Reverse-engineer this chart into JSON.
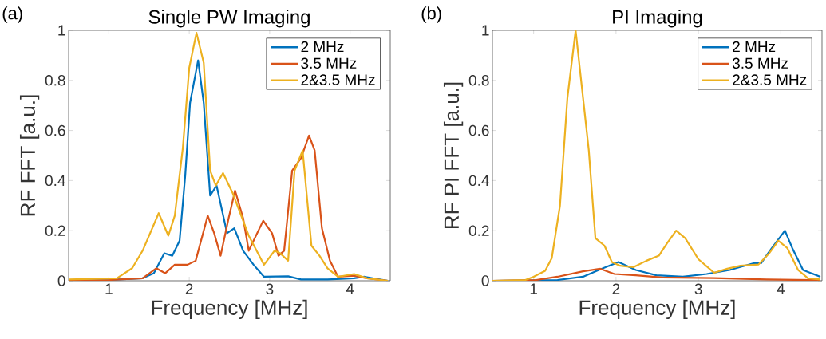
{
  "chart_data": [
    {
      "type": "line",
      "title": "Single PW Imaging",
      "xlabel": "Frequency [MHz]",
      "ylabel": "RF FFT [a.u.]",
      "annotations": [
        "(a)"
      ],
      "xlim": [
        0.5,
        4.5
      ],
      "ylim": [
        0,
        1
      ],
      "xticks": [
        1,
        2,
        3,
        4
      ],
      "yticks": [
        0,
        0.2,
        0.4,
        0.6,
        0.8,
        1
      ],
      "legend": "top right",
      "grid": false,
      "line_style": "solid",
      "series": [
        {
          "name": "2 MHz",
          "color": "#0072bd",
          "x": [
            0.5,
            1.0,
            1.42,
            1.56,
            1.69,
            1.79,
            1.88,
            1.95,
            2.01,
            2.11,
            2.18,
            2.26,
            2.34,
            2.47,
            2.56,
            2.67,
            2.8,
            2.93,
            3.23,
            3.39,
            3.72,
            4.05,
            4.18,
            4.47
          ],
          "values": [
            0,
            0.003,
            0.01,
            0.03,
            0.11,
            0.1,
            0.16,
            0.42,
            0.71,
            0.88,
            0.71,
            0.34,
            0.38,
            0.19,
            0.21,
            0.12,
            0.064,
            0.016,
            0.018,
            0.005,
            0.005,
            0.01,
            0.016,
            0
          ]
        },
        {
          "name": "3.5 MHz",
          "color": "#d95319",
          "x": [
            0.5,
            1.0,
            1.42,
            1.59,
            1.7,
            1.82,
            1.98,
            2.08,
            2.23,
            2.31,
            2.39,
            2.49,
            2.57,
            2.67,
            2.74,
            2.92,
            3.03,
            3.11,
            3.18,
            3.28,
            3.39,
            3.49,
            3.56,
            3.65,
            3.75,
            3.85,
            4.05,
            4.21,
            4.47
          ],
          "values": [
            0,
            0.003,
            0.01,
            0.05,
            0.03,
            0.064,
            0.064,
            0.08,
            0.26,
            0.19,
            0.1,
            0.25,
            0.36,
            0.25,
            0.12,
            0.24,
            0.19,
            0.1,
            0.12,
            0.44,
            0.49,
            0.58,
            0.52,
            0.21,
            0.08,
            0.016,
            0.02,
            0.01,
            0
          ]
        },
        {
          "name": "2&3.5 MHz",
          "color": "#edb120",
          "x": [
            0.5,
            1.1,
            1.29,
            1.42,
            1.62,
            1.74,
            1.82,
            1.92,
            2.0,
            2.09,
            2.18,
            2.26,
            2.33,
            2.42,
            2.54,
            2.74,
            2.93,
            3.06,
            3.13,
            3.23,
            3.31,
            3.41,
            3.52,
            3.62,
            3.72,
            3.85,
            4.05,
            4.21,
            4.47
          ],
          "values": [
            0.005,
            0.01,
            0.05,
            0.12,
            0.27,
            0.18,
            0.26,
            0.53,
            0.85,
            0.99,
            0.87,
            0.44,
            0.38,
            0.43,
            0.35,
            0.18,
            0.064,
            0.12,
            0.11,
            0.08,
            0.44,
            0.52,
            0.14,
            0.1,
            0.05,
            0.016,
            0.027,
            0.01,
            0
          ]
        }
      ]
    },
    {
      "type": "line",
      "title": "PI Imaging",
      "xlabel": "Frequency [MHz]",
      "ylabel": "RF PI FFT [a.u.]",
      "annotations": [
        "(b)"
      ],
      "xlim": [
        0.5,
        4.5
      ],
      "ylim": [
        0,
        1
      ],
      "xticks": [
        1,
        2,
        3,
        4
      ],
      "yticks": [
        0,
        0.2,
        0.4,
        0.6,
        0.8,
        1
      ],
      "legend": "top right",
      "grid": false,
      "line_style": "solid",
      "series": [
        {
          "name": "2 MHz",
          "color": "#0072bd",
          "x": [
            0.5,
            1.29,
            1.6,
            1.79,
            2.03,
            2.24,
            2.49,
            2.81,
            3.1,
            3.38,
            3.67,
            3.76,
            3.89,
            4.05,
            4.14,
            4.27,
            4.48
          ],
          "values": [
            0,
            0.003,
            0.016,
            0.043,
            0.075,
            0.043,
            0.022,
            0.016,
            0.027,
            0.043,
            0.07,
            0.07,
            0.13,
            0.2,
            0.13,
            0.043,
            0.016
          ]
        },
        {
          "name": "3.5 MHz",
          "color": "#d95319",
          "x": [
            0.5,
            1.03,
            1.29,
            1.6,
            1.81,
            1.98,
            2.24,
            2.56,
            3.19,
            3.83,
            4.48
          ],
          "values": [
            0,
            0.003,
            0.016,
            0.038,
            0.048,
            0.027,
            0.022,
            0.013,
            0.011,
            0.005,
            0.002
          ]
        },
        {
          "name": "2&3.5 MHz",
          "color": "#edb120",
          "x": [
            0.5,
            0.9,
            1.0,
            1.14,
            1.22,
            1.32,
            1.41,
            1.51,
            1.6,
            1.67,
            1.75,
            1.86,
            1.95,
            2.05,
            2.21,
            2.37,
            2.52,
            2.62,
            2.73,
            2.84,
            3.0,
            3.19,
            3.35,
            3.51,
            3.73,
            3.86,
            3.97,
            4.08,
            4.21,
            4.33,
            4.48
          ],
          "values": [
            0,
            0.003,
            0.016,
            0.04,
            0.09,
            0.3,
            0.73,
            1.0,
            0.73,
            0.52,
            0.17,
            0.14,
            0.075,
            0.06,
            0.054,
            0.08,
            0.1,
            0.15,
            0.2,
            0.17,
            0.086,
            0.032,
            0.048,
            0.06,
            0.065,
            0.11,
            0.16,
            0.13,
            0.043,
            0.01,
            0.005
          ]
        }
      ]
    }
  ]
}
